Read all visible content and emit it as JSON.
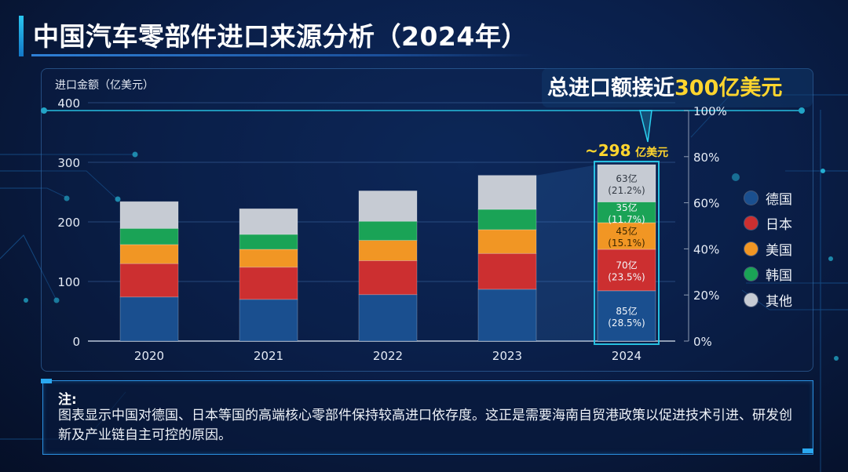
{
  "page": {
    "title": "中国汽车零部件进口来源分析（2024年）"
  },
  "callout": {
    "prefix": "总进口额接近",
    "highlight": "300亿美元"
  },
  "total_2024": {
    "value": "~298",
    "unit": "亿美元"
  },
  "note": {
    "head": "注:",
    "text": "图表显示中国对德国、日本等国的高端核心零部件保持较高进口依存度。这正是需要海南自贸港政策以促进技术引进、研发创新及产业链自主可控的原因。"
  },
  "colors": {
    "德国": "#1a4f8f",
    "日本": "#cc2f30",
    "美国": "#f19624",
    "韩国": "#1aa356",
    "其他": "#c6cbd3",
    "accent": "#2ad0f0",
    "highlight": "#ffd52e"
  },
  "chart_data": {
    "type": "bar",
    "stacked": true,
    "title": "中国汽车零部件进口来源分析（2024年）",
    "xlabel": "",
    "ylabel": "进口金额（亿美元）",
    "ylim": [
      0,
      400
    ],
    "yticks": [
      "0",
      "100",
      "200",
      "300",
      "400"
    ],
    "y2lim": [
      0,
      100
    ],
    "y2ticks": [
      "0%",
      "20%",
      "40%",
      "60%",
      "80%",
      "100%"
    ],
    "grid": true,
    "legend_position": "right",
    "categories": [
      "2020",
      "2021",
      "2022",
      "2023",
      "2024"
    ],
    "series": [
      {
        "name": "德国",
        "color": "#1a4f8f",
        "values": [
          74,
          70,
          78,
          87,
          85
        ]
      },
      {
        "name": "日本",
        "color": "#cc2f30",
        "values": [
          56,
          54,
          57,
          60,
          70
        ]
      },
      {
        "name": "美国",
        "color": "#f19624",
        "values": [
          32,
          30,
          34,
          40,
          45
        ]
      },
      {
        "name": "韩国",
        "color": "#1aa356",
        "values": [
          27,
          25,
          32,
          34,
          35
        ]
      },
      {
        "name": "其他",
        "color": "#c6cbd3",
        "values": [
          45,
          43,
          51,
          57,
          63
        ]
      }
    ],
    "highlight_labels_2024": [
      {
        "series": "德国",
        "amount": "85亿",
        "share": "(28.5%)"
      },
      {
        "series": "日本",
        "amount": "70亿",
        "share": "(23.5%)"
      },
      {
        "series": "美国",
        "amount": "45亿",
        "share": "(15.1%)"
      },
      {
        "series": "韩国",
        "amount": "35亿",
        "share": "(11.7%)"
      },
      {
        "series": "其他",
        "amount": "63亿",
        "share": "(21.2%)"
      }
    ],
    "highlight_shares_2024": [
      28.5,
      23.5,
      15.1,
      11.7,
      21.2
    ],
    "annotation": "~298 亿美元"
  }
}
